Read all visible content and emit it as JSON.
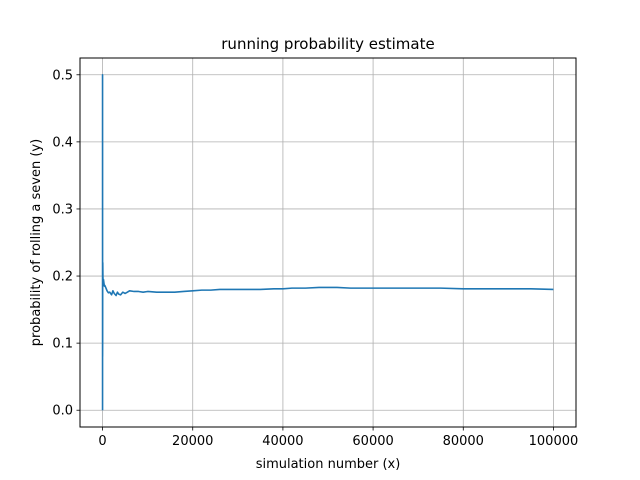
{
  "chart_data": {
    "type": "line",
    "title": "running probability estimate",
    "xlabel": "simulation number (x)",
    "ylabel": "probability of rolling a seven (y)",
    "xlim": [
      -5000,
      105000
    ],
    "ylim": [
      -0.025,
      0.525
    ],
    "xticks": [
      0,
      20000,
      40000,
      60000,
      80000,
      100000
    ],
    "xtick_labels": [
      "0",
      "20000",
      "40000",
      "60000",
      "80000",
      "100000"
    ],
    "yticks": [
      0.0,
      0.1,
      0.2,
      0.3,
      0.4,
      0.5
    ],
    "ytick_labels": [
      "0.0",
      "0.1",
      "0.2",
      "0.3",
      "0.4",
      "0.5"
    ],
    "grid": true,
    "line_color": "#1f77b4",
    "series": [
      {
        "x": [
          1,
          2,
          3,
          5,
          8,
          12,
          20,
          30,
          50,
          80,
          120,
          200,
          300,
          400,
          500,
          700,
          1000,
          1300,
          1600,
          2000,
          2300,
          2600,
          3000,
          3300,
          3600,
          4000,
          4500,
          5000,
          5500,
          6000,
          7000,
          8000,
          9000,
          10000,
          12000,
          14000,
          16000,
          18000,
          20000,
          22000,
          24000,
          26000,
          28000,
          30000,
          32000,
          35000,
          38000,
          40000,
          42000,
          45000,
          48000,
          50000,
          52000,
          55000,
          58000,
          60000,
          62000,
          65000,
          68000,
          70000,
          75000,
          80000,
          85000,
          90000,
          95000,
          100000
        ],
        "y": [
          0.0,
          0.5,
          0.33,
          0.4,
          0.25,
          0.08,
          0.1,
          0.2,
          0.22,
          0.2,
          0.19,
          0.195,
          0.19,
          0.185,
          0.186,
          0.183,
          0.178,
          0.175,
          0.176,
          0.172,
          0.178,
          0.174,
          0.171,
          0.176,
          0.173,
          0.172,
          0.176,
          0.174,
          0.176,
          0.178,
          0.177,
          0.177,
          0.176,
          0.177,
          0.176,
          0.176,
          0.176,
          0.177,
          0.178,
          0.179,
          0.179,
          0.18,
          0.18,
          0.18,
          0.18,
          0.18,
          0.181,
          0.181,
          0.182,
          0.182,
          0.183,
          0.183,
          0.183,
          0.182,
          0.182,
          0.182,
          0.182,
          0.182,
          0.182,
          0.182,
          0.182,
          0.181,
          0.181,
          0.181,
          0.181,
          0.18
        ]
      }
    ]
  }
}
